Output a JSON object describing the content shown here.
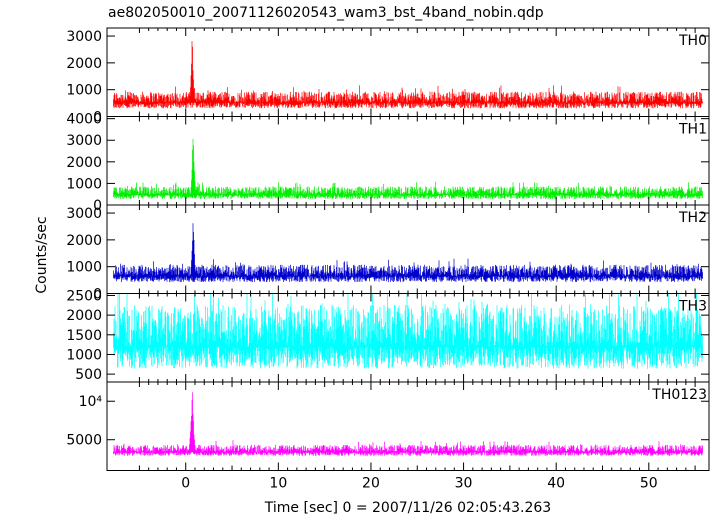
{
  "title": "ae802050010_20071126020543_wam3_bst_4band_nobin.qdp",
  "xlabel": "Time [sec] 0 = 2007/11/26 02:05:43.263",
  "ylabel": "Counts/sec",
  "chart_data": {
    "type": "line",
    "xlim": [
      -8.5,
      56.5
    ],
    "x_ticks": [
      0,
      10,
      20,
      30,
      40,
      50
    ],
    "x_tick_labels": [
      "0",
      "10",
      "20",
      "30",
      "40",
      "50"
    ],
    "grid": false,
    "panels": [
      {
        "name": "TH0",
        "color": "#ff0000",
        "ylim": [
          0,
          3300
        ],
        "y_ticks": [
          0,
          1000,
          2000,
          3000
        ],
        "y_tick_labels": [
          "0",
          "1000",
          "2000",
          "3000"
        ],
        "x_range": [
          -7.8,
          55.8
        ],
        "baseline": 520,
        "noise": 480,
        "min": 80,
        "spikes": [
          {
            "x": 0.7,
            "value": 3300,
            "width": 0.35
          }
        ]
      },
      {
        "name": "TH1",
        "color": "#00ee00",
        "ylim": [
          0,
          4100
        ],
        "y_ticks": [
          0,
          1000,
          2000,
          3000,
          4000
        ],
        "y_tick_labels": [
          "0",
          "1000",
          "2000",
          "3000",
          "4000"
        ],
        "x_range": [
          -7.8,
          55.8
        ],
        "baseline": 480,
        "noise": 450,
        "min": 100,
        "spikes": [
          {
            "x": 0.8,
            "value": 4000,
            "width": 0.35
          }
        ]
      },
      {
        "name": "TH2",
        "color": "#0000cc",
        "ylim": [
          0,
          3300
        ],
        "y_ticks": [
          0,
          1000,
          2000,
          3000
        ],
        "y_tick_labels": [
          "0",
          "1000",
          "2000",
          "3000"
        ],
        "x_range": [
          -7.8,
          55.8
        ],
        "baseline": 650,
        "noise": 500,
        "min": 150,
        "spikes": [
          {
            "x": 0.8,
            "value": 3250,
            "width": 0.35
          }
        ]
      },
      {
        "name": "TH3",
        "color": "#00ffff",
        "ylim": [
          300,
          2550
        ],
        "y_ticks": [
          500,
          1000,
          1500,
          2000,
          2500
        ],
        "y_tick_labels": [
          "500",
          "1000",
          "1500",
          "2000",
          "2500"
        ],
        "x_range": [
          -7.8,
          55.8
        ],
        "baseline": 1200,
        "noise": 1250,
        "min": 300,
        "spikes": []
      },
      {
        "name": "TH0123",
        "color": "#ff00ff",
        "ylim": [
          1000,
          12500
        ],
        "y_ticks": [
          5000,
          10000
        ],
        "y_tick_labels": [
          "5000",
          "10⁴"
        ],
        "x_range": [
          -7.8,
          55.8
        ],
        "baseline": 3400,
        "noise": 1100,
        "min": 2500,
        "spikes": [
          {
            "x": 0.7,
            "value": 12400,
            "width": 0.45
          },
          {
            "x": 5.1,
            "value": 5300,
            "width": 0.1
          }
        ]
      }
    ]
  }
}
